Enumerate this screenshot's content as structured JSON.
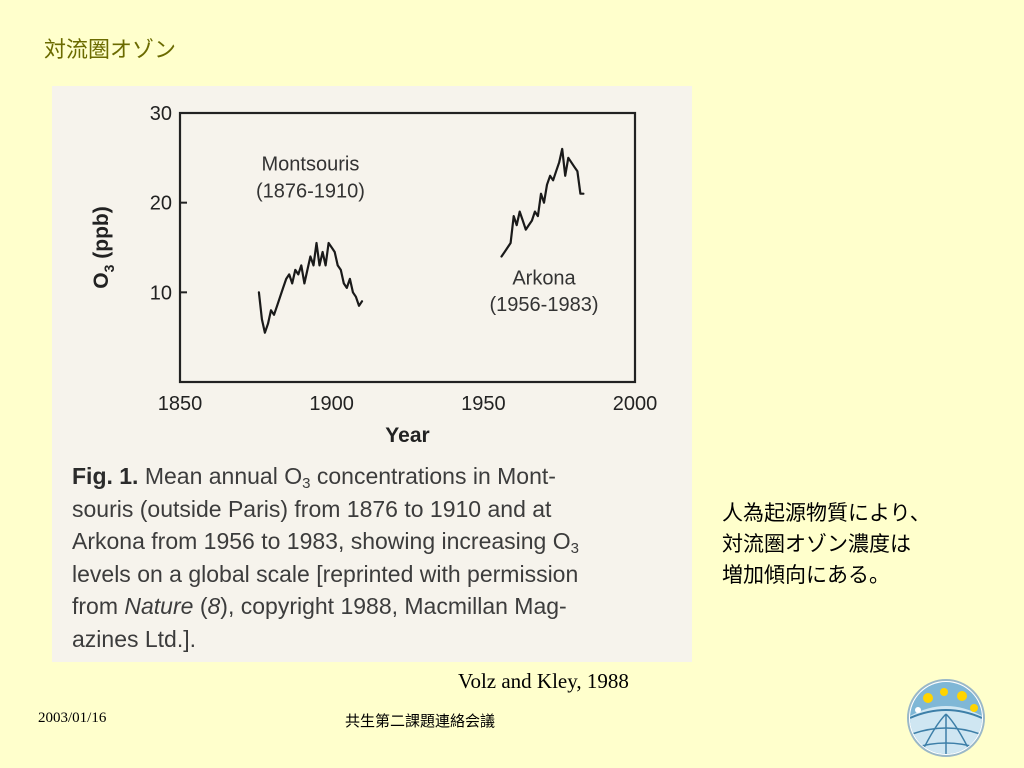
{
  "slide": {
    "title": "対流圏オゾン",
    "note_lines": [
      "人為起源物質により、",
      "対流圏オゾン濃度は",
      "増加傾向にある。"
    ],
    "citation": "Volz and Kley, 1988",
    "footer_date": "2003/01/16",
    "footer_meeting": "共生第二課題連絡会議"
  },
  "figure": {
    "caption_label": "Fig. 1.",
    "caption_lines": [
      [
        "Mean annual O",
        "3",
        " concentrations in Mont-"
      ],
      [
        "souris (outside Paris) from 1876 to 1910 and at"
      ],
      [
        "Arkona from 1956 to 1983, showing increasing O",
        "3"
      ],
      [
        "levels on a global scale [reprinted with permission"
      ],
      [
        "from ",
        "Nature",
        " (",
        "8",
        "), copyright 1988, Macmillan Mag-"
      ],
      [
        "azines Ltd.]."
      ]
    ]
  },
  "chart_data": {
    "type": "line",
    "xlabel": "Year",
    "ylabel_main": "O",
    "ylabel_sub": "3",
    "ylabel_unit": " (ppb)",
    "xlim": [
      1850,
      2000
    ],
    "ylim": [
      0,
      30
    ],
    "xticks": [
      1850,
      1900,
      1950,
      2000
    ],
    "yticks": [
      10,
      20,
      30
    ],
    "grid": false,
    "series": [
      {
        "name": "Montsouris",
        "name_line2": "(1876-1910)",
        "x": [
          1876,
          1877,
          1878,
          1879,
          1880,
          1881,
          1882,
          1883,
          1884,
          1885,
          1886,
          1887,
          1888,
          1889,
          1890,
          1891,
          1892,
          1893,
          1894,
          1895,
          1896,
          1897,
          1898,
          1899,
          1900,
          1901,
          1902,
          1903,
          1904,
          1905,
          1906,
          1907,
          1908,
          1909,
          1910
        ],
        "y": [
          10,
          7,
          5.5,
          6.5,
          8,
          7.5,
          8.5,
          9.5,
          10.5,
          11.5,
          12,
          11,
          12.5,
          12,
          13,
          11,
          12.5,
          14,
          13,
          15.5,
          13,
          14.5,
          13,
          15.5,
          15,
          14.5,
          13,
          12.5,
          11,
          10.5,
          11.5,
          10,
          9.5,
          8.5,
          9
        ]
      },
      {
        "name": "Arkona",
        "name_line2": "(1956-1983)",
        "x": [
          1956,
          1957,
          1958,
          1959,
          1960,
          1961,
          1962,
          1963,
          1964,
          1965,
          1966,
          1967,
          1968,
          1969,
          1970,
          1971,
          1972,
          1973,
          1974,
          1975,
          1976,
          1977,
          1978,
          1979,
          1980,
          1981,
          1982,
          1983
        ],
        "y": [
          14,
          14.5,
          15,
          15.5,
          18.5,
          17.5,
          19,
          18,
          17,
          17.5,
          18,
          19,
          18.5,
          21,
          20,
          22,
          23,
          22.5,
          23.5,
          24.5,
          26,
          23,
          25,
          24.5,
          24,
          23.5,
          21,
          21
        ]
      }
    ]
  }
}
